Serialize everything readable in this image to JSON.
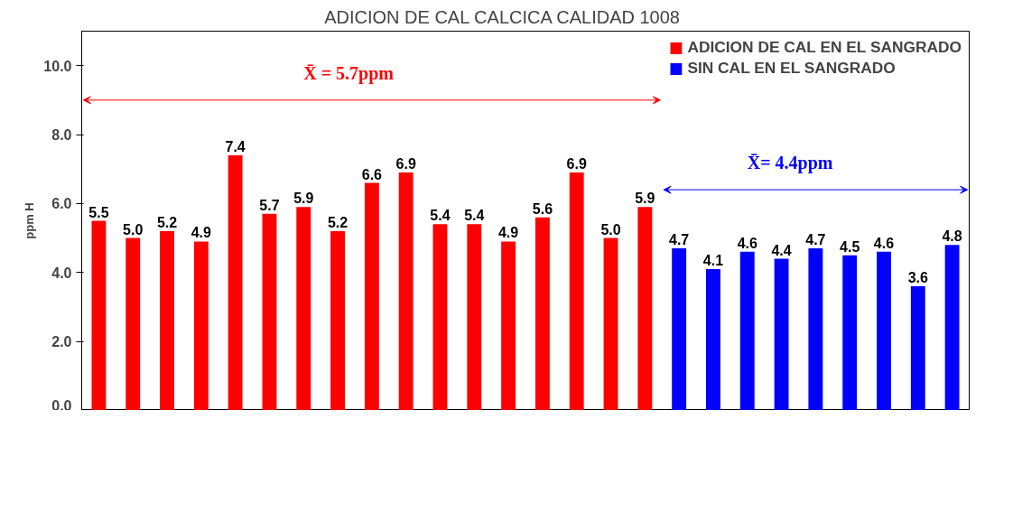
{
  "chart_data": {
    "type": "bar",
    "title": "ADICION DE CAL CALCICA          CALIDAD 1008",
    "ylabel": "ppm H",
    "categories": [
      null,
      null,
      null,
      null,
      null,
      null,
      null,
      null,
      null,
      null,
      null,
      null,
      null,
      null,
      null,
      null,
      null,
      null,
      null,
      null,
      null,
      null,
      null,
      null,
      null,
      null
    ],
    "series": [
      {
        "name": "ADICION DE CAL EN EL SANGRADO",
        "color": "#ff0000",
        "values": [
          5.5,
          5.0,
          5.2,
          4.9,
          7.4,
          5.7,
          5.9,
          5.2,
          6.6,
          6.9,
          5.4,
          5.4,
          4.9,
          5.6,
          6.9,
          5.0,
          5.9,
          null,
          null,
          null,
          null,
          null,
          null,
          null,
          null,
          null
        ],
        "value_labels": [
          "5.5",
          "5.0",
          "5.2",
          "4.9",
          "7.4",
          "5.7",
          "5.9",
          "5.2",
          "6.6",
          "6.9",
          "5.4",
          "5.4",
          "4.9",
          "5.6",
          "6.9",
          "5.0",
          "5.9",
          null,
          null,
          null,
          null,
          null,
          null,
          null,
          null,
          null
        ]
      },
      {
        "name": "SIN CAL EN EL SANGRADO",
        "color": "#0000ff",
        "values": [
          null,
          null,
          null,
          null,
          null,
          null,
          null,
          null,
          null,
          null,
          null,
          null,
          null,
          null,
          null,
          null,
          null,
          4.7,
          4.1,
          4.6,
          4.4,
          4.7,
          4.5,
          4.6,
          3.6,
          4.8
        ],
        "value_labels": [
          null,
          null,
          null,
          null,
          null,
          null,
          null,
          null,
          null,
          null,
          null,
          null,
          null,
          null,
          null,
          null,
          null,
          "4.7",
          "4.1",
          "4.6",
          "4.4",
          "4.7",
          "4.5",
          "4.6",
          "3.6",
          "4.8"
        ]
      }
    ],
    "annotations": [
      "X̄ = 5.7ppm",
      "X̄= 4.4ppm"
    ],
    "ylim": [
      0,
      11
    ],
    "yticks": [
      {
        "value": 0,
        "label": "0.0"
      },
      {
        "value": 2,
        "label": "2.0"
      },
      {
        "value": 4,
        "label": "4.0"
      },
      {
        "value": 6,
        "label": "6.0"
      },
      {
        "value": 8,
        "label": "8.0"
      },
      {
        "value": 10,
        "label": "10.0"
      }
    ],
    "stacked": true,
    "grid": false,
    "legend": "top right",
    "tick_labels": "y"
  }
}
